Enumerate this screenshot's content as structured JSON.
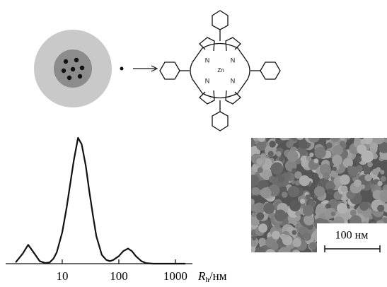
{
  "figure": {
    "molecule": {
      "atoms": [
        "N",
        "N",
        "N",
        "N",
        "Zn"
      ]
    },
    "micrograph": {
      "scale_bar": "100 нм"
    }
  },
  "chart_data": {
    "type": "line",
    "x": [
      1.5,
      2,
      2.5,
      3,
      4,
      5,
      6,
      7,
      8,
      10,
      12,
      14,
      16,
      19,
      22,
      26,
      30,
      35,
      40,
      50,
      60,
      70,
      80,
      100,
      120,
      145,
      170,
      200,
      250,
      300,
      400,
      600,
      1000,
      1500
    ],
    "values": [
      1,
      8,
      15,
      10,
      2,
      0.5,
      1,
      4,
      9,
      25,
      45,
      65,
      82,
      100,
      95,
      78,
      58,
      38,
      22,
      7,
      3,
      2,
      3,
      6,
      10,
      12,
      10,
      6,
      2,
      0.5,
      0,
      0,
      0,
      0
    ],
    "color": "#111111",
    "log_x": true,
    "xlim": [
      1,
      2000
    ],
    "ylim": [
      0,
      100
    ],
    "xticks": [
      10,
      100,
      1000
    ],
    "x_label": {
      "symbol": "R",
      "subscript": "h",
      "unit": "/нм"
    }
  }
}
